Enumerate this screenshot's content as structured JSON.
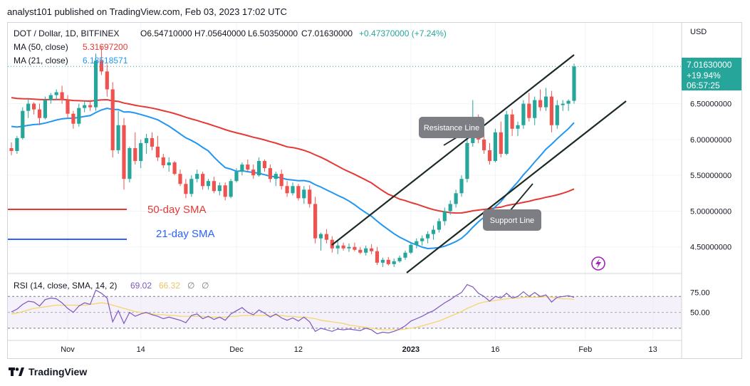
{
  "header": {
    "text": "analyst101 published on TradingView.com, Feb 03, 2023 17:02 UTC"
  },
  "footer": {
    "brand": "TradingView"
  },
  "legend": {
    "symbol": "DOT / Dollar, 1D, BITFINEX",
    "open": "O6.54710000",
    "high": "H7.05640000",
    "low": "L6.50350000",
    "close": "C7.01630000",
    "change": "+0.47370000 (+7.24%)",
    "ma50_label": "MA (50, close)",
    "ma50_value": "5.31697200",
    "ma21_label": "MA (21, close)",
    "ma21_value": "6.18518571"
  },
  "rsi_legend": {
    "label": "RSI (14, close, SMA, 14, 2)",
    "value": "69.02",
    "sma": "66.32",
    "e1": "∅",
    "e2": "∅"
  },
  "annotations": {
    "sma50": "50-day SMA",
    "sma21": "21-day SMA",
    "resistance": "Resistance Line",
    "support": "Support Line"
  },
  "price_box": {
    "price": "7.01630000",
    "change": "+19.94%",
    "countdown": "06:57:25"
  },
  "colors": {
    "up": "#26a69a",
    "down": "#ef5350",
    "ma50": "#e53935",
    "ma21": "#2196f3",
    "rsi": "#7e57c2",
    "rsi_sma": "#f5d66b",
    "price_box": "#26a69a",
    "grid": "#f0f3fa"
  },
  "icons": {
    "lightning": "lightning-icon",
    "logo": "tradingview-logo-icon"
  },
  "chart_data": {
    "type": "candlestick",
    "symbol": "DOT / Dollar",
    "interval": "1D",
    "exchange": "BITFINEX",
    "currency": "USD",
    "y_ticks": [
      "6.50000000",
      "6.00000000",
      "5.50000000",
      "5.00000000",
      "4.50000000"
    ],
    "y_tick_values": [
      6.5,
      6.0,
      5.5,
      5.0,
      4.5
    ],
    "ylim": [
      4.05,
      7.55
    ],
    "x_ticks": [
      {
        "label": "Nov",
        "date": "2022-11-01"
      },
      {
        "label": "14",
        "date": "2022-11-14"
      },
      {
        "label": "Dec",
        "date": "2022-12-01"
      },
      {
        "label": "12",
        "date": "2022-12-12"
      },
      {
        "label": "2023",
        "date": "2023-01-01"
      },
      {
        "label": "16",
        "date": "2023-01-16"
      },
      {
        "label": "Feb",
        "date": "2023-02-01"
      },
      {
        "label": "13",
        "date": "2023-02-13"
      }
    ],
    "start_date": "2022-10-22",
    "candles": [
      [
        5.88,
        5.96,
        5.78,
        5.84
      ],
      [
        5.84,
        6.05,
        5.8,
        6.02
      ],
      [
        6.02,
        6.45,
        6.0,
        6.4
      ],
      [
        6.4,
        6.58,
        6.3,
        6.5
      ],
      [
        6.5,
        6.52,
        6.35,
        6.42
      ],
      [
        6.42,
        6.5,
        6.2,
        6.3
      ],
      [
        6.3,
        6.6,
        6.28,
        6.55
      ],
      [
        6.55,
        6.65,
        6.5,
        6.62
      ],
      [
        6.62,
        6.7,
        6.55,
        6.66
      ],
      [
        6.66,
        6.75,
        6.5,
        6.55
      ],
      [
        6.55,
        6.62,
        6.3,
        6.36
      ],
      [
        6.36,
        6.4,
        6.15,
        6.22
      ],
      [
        6.22,
        6.5,
        6.18,
        6.44
      ],
      [
        6.44,
        6.55,
        6.38,
        6.48
      ],
      [
        6.48,
        6.55,
        6.4,
        6.45
      ],
      [
        6.45,
        7.2,
        6.4,
        7.1
      ],
      [
        7.1,
        7.3,
        6.9,
        6.95
      ],
      [
        6.95,
        7.05,
        6.6,
        6.7
      ],
      [
        6.7,
        6.8,
        5.75,
        5.85
      ],
      [
        5.85,
        6.4,
        5.8,
        6.2
      ],
      [
        6.2,
        6.3,
        5.3,
        5.45
      ],
      [
        5.45,
        5.9,
        5.4,
        5.88
      ],
      [
        5.88,
        6.1,
        5.65,
        5.7
      ],
      [
        5.7,
        6.0,
        5.6,
        5.95
      ],
      [
        5.95,
        6.08,
        5.8,
        6.02
      ],
      [
        6.02,
        6.1,
        5.85,
        5.9
      ],
      [
        5.9,
        6.05,
        5.7,
        5.75
      ],
      [
        5.75,
        5.8,
        5.6,
        5.64
      ],
      [
        5.64,
        5.75,
        5.55,
        5.68
      ],
      [
        5.68,
        5.7,
        5.5,
        5.52
      ],
      [
        5.52,
        5.58,
        5.35,
        5.38
      ],
      [
        5.38,
        5.45,
        5.18,
        5.24
      ],
      [
        5.24,
        5.5,
        5.2,
        5.45
      ],
      [
        5.45,
        5.58,
        5.4,
        5.52
      ],
      [
        5.52,
        5.55,
        5.3,
        5.35
      ],
      [
        5.35,
        5.45,
        5.3,
        5.42
      ],
      [
        5.42,
        5.48,
        5.25,
        5.28
      ],
      [
        5.28,
        5.4,
        5.22,
        5.36
      ],
      [
        5.36,
        5.4,
        5.15,
        5.2
      ],
      [
        5.2,
        5.45,
        5.18,
        5.42
      ],
      [
        5.42,
        5.6,
        5.4,
        5.55
      ],
      [
        5.55,
        5.68,
        5.5,
        5.65
      ],
      [
        5.65,
        5.72,
        5.55,
        5.58
      ],
      [
        5.58,
        5.65,
        5.45,
        5.5
      ],
      [
        5.5,
        5.75,
        5.48,
        5.7
      ],
      [
        5.7,
        5.72,
        5.55,
        5.6
      ],
      [
        5.6,
        5.65,
        5.4,
        5.45
      ],
      [
        5.45,
        5.55,
        5.35,
        5.52
      ],
      [
        5.52,
        5.58,
        5.3,
        5.35
      ],
      [
        5.35,
        5.42,
        5.2,
        5.25
      ],
      [
        5.25,
        5.4,
        5.22,
        5.35
      ],
      [
        5.35,
        5.38,
        5.15,
        5.18
      ],
      [
        5.18,
        5.35,
        5.1,
        5.3
      ],
      [
        5.3,
        5.36,
        5.05,
        5.1
      ],
      [
        5.1,
        5.2,
        4.55,
        4.62
      ],
      [
        4.62,
        4.7,
        4.45,
        4.68
      ],
      [
        4.68,
        4.75,
        4.55,
        4.6
      ],
      [
        4.6,
        4.65,
        4.42,
        4.48
      ],
      [
        4.48,
        4.58,
        4.4,
        4.52
      ],
      [
        4.52,
        4.56,
        4.45,
        4.48
      ],
      [
        4.48,
        4.55,
        4.43,
        4.5
      ],
      [
        4.5,
        4.56,
        4.44,
        4.46
      ],
      [
        4.46,
        4.5,
        4.4,
        4.42
      ],
      [
        4.42,
        4.52,
        4.38,
        4.48
      ],
      [
        4.48,
        4.54,
        4.4,
        4.44
      ],
      [
        4.44,
        4.5,
        4.25,
        4.28
      ],
      [
        4.28,
        4.35,
        4.22,
        4.32
      ],
      [
        4.32,
        4.36,
        4.24,
        4.26
      ],
      [
        4.26,
        4.34,
        4.22,
        4.3
      ],
      [
        4.3,
        4.38,
        4.28,
        4.35
      ],
      [
        4.35,
        4.45,
        4.32,
        4.42
      ],
      [
        4.42,
        4.56,
        4.4,
        4.53
      ],
      [
        4.53,
        4.62,
        4.48,
        4.58
      ],
      [
        4.58,
        4.66,
        4.52,
        4.62
      ],
      [
        4.62,
        4.72,
        4.55,
        4.68
      ],
      [
        4.68,
        4.8,
        4.6,
        4.74
      ],
      [
        4.74,
        4.9,
        4.7,
        4.86
      ],
      [
        4.86,
        5.05,
        4.8,
        5.0
      ],
      [
        5.0,
        5.15,
        4.95,
        5.1
      ],
      [
        5.1,
        5.3,
        5.05,
        5.25
      ],
      [
        5.25,
        5.5,
        5.2,
        5.45
      ],
      [
        5.45,
        6.0,
        5.4,
        5.95
      ],
      [
        5.95,
        6.55,
        5.9,
        6.25
      ],
      [
        6.25,
        6.35,
        5.95,
        6.0
      ],
      [
        6.0,
        6.1,
        5.8,
        5.85
      ],
      [
        5.85,
        5.95,
        5.65,
        5.7
      ],
      [
        5.7,
        6.15,
        5.68,
        6.1
      ],
      [
        6.1,
        6.25,
        5.75,
        5.8
      ],
      [
        5.8,
        6.4,
        5.78,
        6.35
      ],
      [
        6.35,
        6.42,
        6.05,
        6.15
      ],
      [
        6.15,
        6.25,
        6.05,
        6.2
      ],
      [
        6.2,
        6.55,
        6.15,
        6.5
      ],
      [
        6.5,
        6.65,
        6.25,
        6.3
      ],
      [
        6.3,
        6.6,
        6.2,
        6.55
      ],
      [
        6.55,
        6.7,
        6.4,
        6.45
      ],
      [
        6.45,
        6.72,
        6.4,
        6.6
      ],
      [
        6.6,
        6.68,
        6.1,
        6.2
      ],
      [
        6.2,
        6.55,
        6.15,
        6.48
      ],
      [
        6.48,
        6.55,
        6.4,
        6.5
      ],
      [
        6.5,
        6.56,
        6.4,
        6.54
      ],
      [
        6.54,
        7.06,
        6.5,
        7.02
      ]
    ],
    "rsi_ticks": [
      "75.00",
      "50.00"
    ],
    "rsi_levels": [
      70,
      30
    ],
    "rsi": [
      50.5,
      54,
      60,
      64,
      63,
      58,
      66,
      68,
      67,
      62,
      55,
      50,
      58,
      62,
      60,
      78,
      74,
      68,
      38,
      52,
      36,
      50,
      45,
      48,
      50,
      47,
      45,
      42,
      44,
      42,
      40,
      37,
      46,
      48,
      42,
      45,
      41,
      44,
      40,
      48,
      52,
      56,
      50,
      47,
      53,
      49,
      44,
      48,
      43,
      40,
      43,
      39,
      44,
      38,
      26,
      30,
      28,
      26,
      29,
      28,
      29,
      28,
      27,
      30,
      28,
      23,
      25,
      24,
      26,
      29,
      33,
      39,
      42,
      45,
      49,
      52,
      57,
      62,
      66,
      71,
      75,
      85,
      82,
      74,
      70,
      64,
      70,
      68,
      74,
      68,
      70,
      76,
      70,
      75,
      70,
      72,
      63,
      69,
      70,
      71,
      69.02
    ],
    "rsi_sma": [
      48,
      49,
      51,
      53,
      55,
      56,
      57,
      58,
      59,
      59,
      59,
      59,
      59,
      59,
      60,
      61,
      62,
      61,
      59,
      57,
      55,
      53,
      51,
      50,
      49,
      48,
      47,
      47,
      46,
      46,
      45,
      45,
      45,
      45,
      45,
      44,
      44,
      44,
      44,
      45,
      45,
      46,
      46,
      46,
      46,
      46,
      46,
      46,
      46,
      45,
      45,
      44,
      44,
      43,
      42,
      40,
      39,
      38,
      37,
      36,
      34,
      33,
      32,
      31,
      30,
      29,
      28,
      28,
      28,
      28,
      29,
      30,
      31,
      33,
      35,
      37,
      39,
      42,
      45,
      48,
      51,
      55,
      58,
      61,
      63,
      64,
      65,
      66,
      67,
      68,
      68,
      69,
      69,
      69,
      69,
      70,
      69,
      68,
      67,
      67,
      66.32
    ]
  }
}
